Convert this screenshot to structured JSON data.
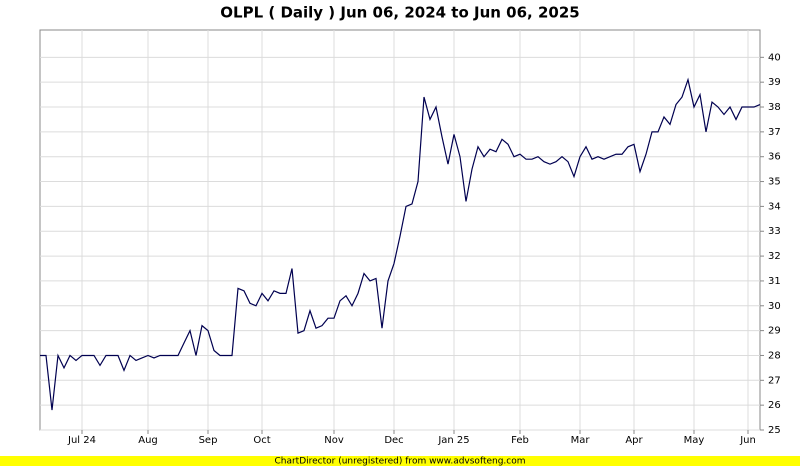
{
  "chart_data": {
    "type": "line",
    "title": "OLPL ( Daily ) Jun 06, 2024 to Jun 06, 2025",
    "footer": "ChartDirector (unregistered) from www.advsofteng.com",
    "color": "#000050",
    "grid": true,
    "y_axis_side": "right",
    "ylim": [
      25,
      41.1
    ],
    "yticks": [
      25,
      26,
      27,
      28,
      29,
      30,
      31,
      32,
      33,
      34,
      35,
      36,
      37,
      38,
      39,
      40
    ],
    "categories": [
      null,
      null,
      null,
      null,
      null,
      null,
      null,
      "Jul 24",
      null,
      null,
      null,
      null,
      null,
      null,
      null,
      null,
      null,
      null,
      "Aug",
      null,
      null,
      null,
      null,
      null,
      null,
      null,
      null,
      null,
      "Sep",
      null,
      null,
      null,
      null,
      null,
      null,
      null,
      null,
      "Oct",
      null,
      null,
      null,
      null,
      null,
      null,
      null,
      null,
      null,
      null,
      null,
      "Nov",
      null,
      null,
      null,
      null,
      null,
      null,
      null,
      null,
      null,
      "Dec",
      null,
      null,
      null,
      null,
      null,
      null,
      null,
      null,
      null,
      "Jan 25",
      null,
      null,
      null,
      null,
      null,
      null,
      null,
      null,
      null,
      null,
      "Feb",
      null,
      null,
      null,
      null,
      null,
      null,
      null,
      null,
      null,
      "Mar",
      null,
      null,
      null,
      null,
      null,
      null,
      null,
      null,
      "Apr",
      null,
      null,
      null,
      null,
      null,
      null,
      null,
      null,
      null,
      "May",
      null,
      null,
      null,
      null,
      null,
      null,
      null,
      null,
      "Jun",
      null,
      null
    ],
    "values": [
      28,
      28,
      25.8,
      28,
      27.5,
      28,
      27.8,
      28,
      28,
      28,
      27.6,
      28,
      28,
      28,
      27.4,
      28,
      27.8,
      27.9,
      28,
      27.9,
      28,
      28,
      28,
      28,
      28.5,
      29,
      28,
      29.2,
      29,
      28.2,
      28,
      28,
      28,
      30.7,
      30.6,
      30.1,
      30,
      30.5,
      30.2,
      30.6,
      30.5,
      30.5,
      31.5,
      28.9,
      29,
      29.8,
      29.1,
      29.2,
      29.5,
      29.5,
      30.2,
      30.4,
      30,
      30.5,
      31.3,
      31,
      31.1,
      29.1,
      31,
      31.7,
      32.8,
      34,
      34.1,
      35,
      38.4,
      37.5,
      38,
      36.8,
      35.7,
      36.9,
      36,
      34.2,
      35.5,
      36.4,
      36,
      36.3,
      36.2,
      36.7,
      36.5,
      36,
      36.1,
      35.9,
      35.9,
      36,
      35.8,
      35.7,
      35.8,
      36,
      35.8,
      35.2,
      36,
      36.4,
      35.9,
      36,
      35.9,
      36,
      36.1,
      36.1,
      36.4,
      36.5,
      35.4,
      36.1,
      37,
      37,
      37.6,
      37.3,
      38.1,
      38.4,
      39.1,
      38,
      38.5,
      37,
      38.2,
      38,
      37.7,
      38,
      37.5,
      38,
      38,
      38,
      38.1
    ]
  }
}
